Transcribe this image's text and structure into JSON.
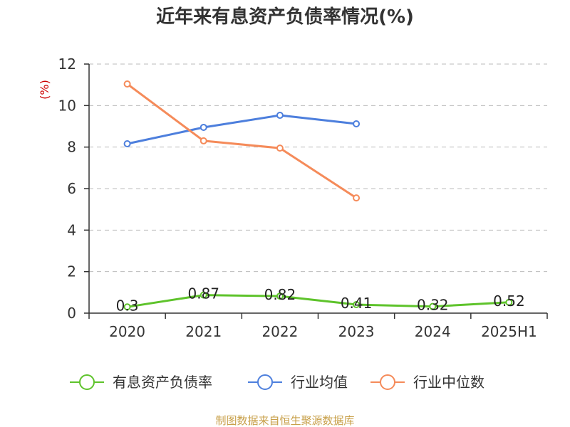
{
  "title": "近年来有息资产负债率情况(%)",
  "footer": "制图数据来自恒生聚源数据库",
  "colors": {
    "axis": "#333333",
    "grid": "#bbbbbb",
    "ylabel": "#cc0000",
    "footer": "#c8a04a"
  },
  "chart_data": {
    "type": "line",
    "title": "近年来有息资产负债率情况(%)",
    "xlabel": "",
    "ylabel": "(%)",
    "categories": [
      "2020",
      "2021",
      "2022",
      "2023",
      "2024",
      "2025H1"
    ],
    "ylim": [
      0,
      12
    ],
    "yticks": [
      0,
      2,
      4,
      6,
      8,
      10,
      12
    ],
    "grid": true,
    "legend_position": "bottom",
    "series": [
      {
        "name": "有息资产负债率",
        "color": "#5ec32b",
        "show_labels": true,
        "values": [
          0.3,
          0.87,
          0.82,
          0.41,
          0.32,
          0.52
        ]
      },
      {
        "name": "行业均值",
        "color": "#4d7fdd",
        "show_labels": false,
        "values": [
          8.16,
          8.95,
          9.53,
          9.12,
          null,
          null
        ]
      },
      {
        "name": "行业中位数",
        "color": "#f58b5a",
        "show_labels": false,
        "values": [
          11.04,
          8.3,
          7.95,
          5.55,
          null,
          null
        ]
      }
    ]
  }
}
